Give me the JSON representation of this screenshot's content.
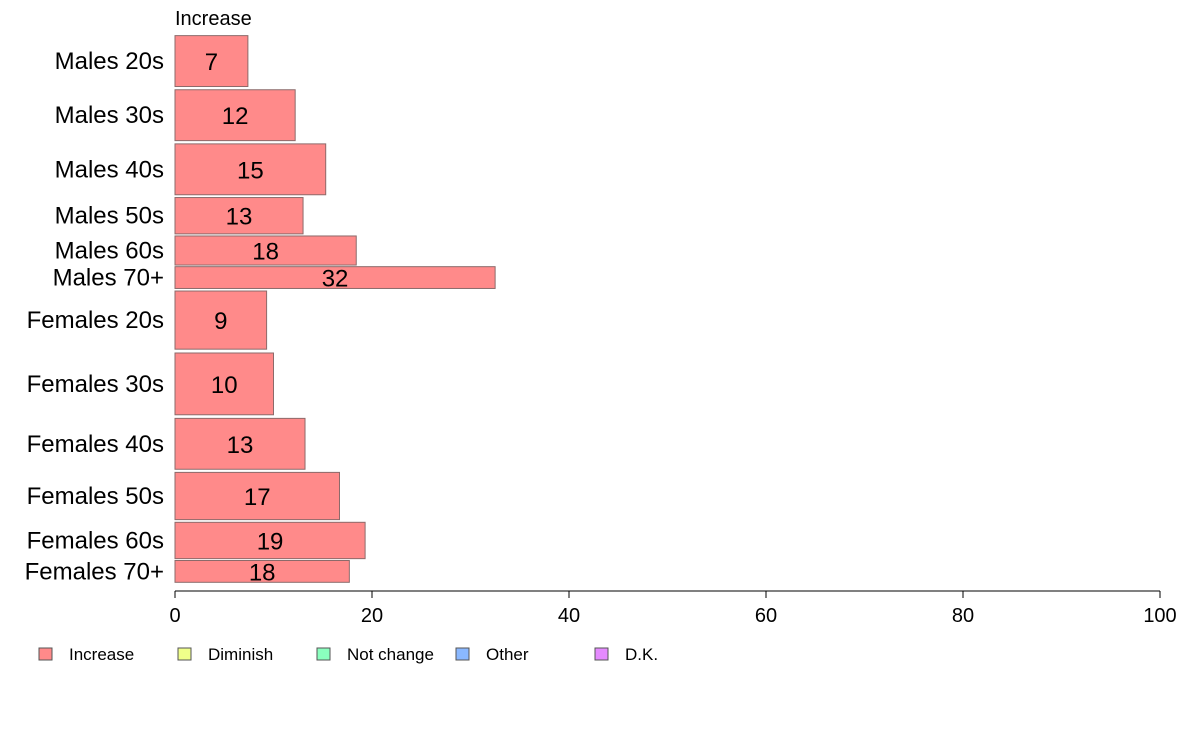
{
  "chart_data": {
    "type": "bar",
    "orientation": "horizontal",
    "stacked": true,
    "series_header": "Increase",
    "categories": [
      "Males 20s",
      "Males 30s",
      "Males 40s",
      "Males 50s",
      "Males 60s",
      "Males 70+",
      "Females 20s",
      "Females 30s",
      "Females 40s",
      "Females 50s",
      "Females 60s",
      "Females 70+"
    ],
    "category_weights": [
      7,
      7,
      7,
      5,
      4,
      3,
      8,
      8.5,
      7,
      6.5,
      5,
      3
    ],
    "series": [
      {
        "name": "Increase",
        "color": "#ff8a8a",
        "values": [
          7.4,
          12.2,
          15.3,
          13.0,
          18.4,
          32.5,
          9.3,
          10.0,
          13.2,
          16.7,
          19.3,
          17.7
        ],
        "labels": [
          "7",
          "12",
          "15",
          "13",
          "18",
          "32",
          "9",
          "10",
          "13",
          "17",
          "19",
          "18"
        ]
      }
    ],
    "legend": [
      {
        "name": "Increase",
        "color": "#ff8a8a"
      },
      {
        "name": "Diminish",
        "color": "#f0ff8a"
      },
      {
        "name": "Not change",
        "color": "#8affbe"
      },
      {
        "name": "Other",
        "color": "#8ab8ff"
      },
      {
        "name": "D.K.",
        "color": "#e58aff"
      }
    ],
    "xlim": [
      0,
      100
    ],
    "xticks": [
      "0",
      "20",
      "40",
      "60",
      "80",
      "100"
    ],
    "grid": false,
    "legend_position": "bottom-left"
  }
}
